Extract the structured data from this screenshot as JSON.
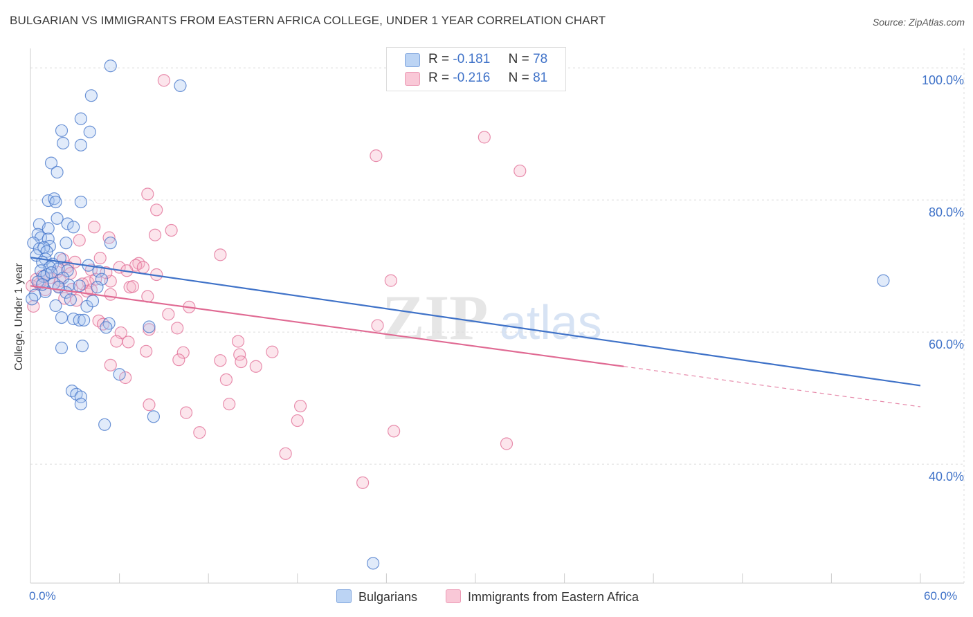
{
  "title": "BULGARIAN VS IMMIGRANTS FROM EASTERN AFRICA COLLEGE, UNDER 1 YEAR CORRELATION CHART",
  "source": "Source: ZipAtlas.com",
  "colors": {
    "blue": "#3f72c8",
    "blue_fill": "#a9c7f0",
    "pink": "#e06a93",
    "pink_fill": "#f5b5c9",
    "grid": "#dddddd"
  },
  "legend": {
    "blue": {
      "r_label": "R =",
      "r_value": "-0.181",
      "n_label": "N =",
      "n_value": "78"
    },
    "pink": {
      "r_label": "R =",
      "r_value": "-0.216",
      "n_label": "N =",
      "n_value": "81"
    }
  },
  "bottom_legend": {
    "series1": "Bulgarians",
    "series2": "Immigrants from Eastern Africa"
  },
  "watermark": {
    "zip": "ZIP",
    "atlas": "atlas"
  },
  "chart_data": {
    "type": "scatter",
    "ylabel": "College, Under 1 year",
    "x_tick_labels": [
      "0.0%",
      "60.0%"
    ],
    "y_tick_labels": [
      "100.0%",
      "80.0%",
      "60.0%",
      "40.0%"
    ],
    "y_ticks": [
      100,
      80,
      60,
      40
    ],
    "xlim": [
      0,
      60
    ],
    "ylim": [
      22,
      102
    ],
    "grid": true,
    "series": [
      {
        "name": "Bulgarians",
        "color": "#3f72c8",
        "trend": {
          "x": [
            0,
            60
          ],
          "y": [
            71.3,
            51.9
          ],
          "dashed_from": null
        },
        "points": [
          [
            5.4,
            100.3
          ],
          [
            10.1,
            97.3
          ],
          [
            4.1,
            95.8
          ],
          [
            3.4,
            92.3
          ],
          [
            2.1,
            90.5
          ],
          [
            4.0,
            90.3
          ],
          [
            2.2,
            88.6
          ],
          [
            3.4,
            88.3
          ],
          [
            1.4,
            85.6
          ],
          [
            1.8,
            84.2
          ],
          [
            1.2,
            79.9
          ],
          [
            1.6,
            80.2
          ],
          [
            1.7,
            79.7
          ],
          [
            3.4,
            79.7
          ],
          [
            1.8,
            77.2
          ],
          [
            0.6,
            76.3
          ],
          [
            2.5,
            76.4
          ],
          [
            1.2,
            75.7
          ],
          [
            2.9,
            75.9
          ],
          [
            0.5,
            74.8
          ],
          [
            0.7,
            74.3
          ],
          [
            1.2,
            74.1
          ],
          [
            0.2,
            73.5
          ],
          [
            2.4,
            73.5
          ],
          [
            5.4,
            73.5
          ],
          [
            1.3,
            73.0
          ],
          [
            0.6,
            72.6
          ],
          [
            0.9,
            72.8
          ],
          [
            1.1,
            72.2
          ],
          [
            0.4,
            71.6
          ],
          [
            1.0,
            71.1
          ],
          [
            2.0,
            71.2
          ],
          [
            0.8,
            70.6
          ],
          [
            1.5,
            70.3
          ],
          [
            3.9,
            70.1
          ],
          [
            1.3,
            69.8
          ],
          [
            1.9,
            69.6
          ],
          [
            0.7,
            69.3
          ],
          [
            2.5,
            69.3
          ],
          [
            4.6,
            69.2
          ],
          [
            1.1,
            68.7
          ],
          [
            0.9,
            68.4
          ],
          [
            2.2,
            68.2
          ],
          [
            4.8,
            68.0
          ],
          [
            0.5,
            67.6
          ],
          [
            1.6,
            67.4
          ],
          [
            2.6,
            67.1
          ],
          [
            3.3,
            67.0
          ],
          [
            4.5,
            66.8
          ],
          [
            1.0,
            66.1
          ],
          [
            2.4,
            66.0
          ],
          [
            0.3,
            65.6
          ],
          [
            2.7,
            64.9
          ],
          [
            1.7,
            64.0
          ],
          [
            3.8,
            63.9
          ],
          [
            2.1,
            62.2
          ],
          [
            2.9,
            62.0
          ],
          [
            3.3,
            61.8
          ],
          [
            3.6,
            61.8
          ],
          [
            5.3,
            61.3
          ],
          [
            5.1,
            60.7
          ],
          [
            8.0,
            60.8
          ],
          [
            2.1,
            57.6
          ],
          [
            3.5,
            57.9
          ],
          [
            6.0,
            53.6
          ],
          [
            2.8,
            51.1
          ],
          [
            3.1,
            50.6
          ],
          [
            3.4,
            50.2
          ],
          [
            3.4,
            49.1
          ],
          [
            8.3,
            47.2
          ],
          [
            5.0,
            46.0
          ],
          [
            57.5,
            67.8
          ],
          [
            23.1,
            25.0
          ],
          [
            0.1,
            65.0
          ],
          [
            1.4,
            69.0
          ],
          [
            0.8,
            67.2
          ],
          [
            1.9,
            66.8
          ],
          [
            4.2,
            64.7
          ]
        ]
      },
      {
        "name": "Immigrants from Eastern Africa",
        "color": "#e06a93",
        "trend": {
          "x": [
            0,
            60
          ],
          "y": [
            67.0,
            48.7
          ],
          "dashed_from": 40
        },
        "points": [
          [
            9.0,
            98.1
          ],
          [
            30.6,
            89.5
          ],
          [
            23.3,
            86.7
          ],
          [
            33.0,
            84.4
          ],
          [
            7.9,
            80.9
          ],
          [
            8.5,
            78.5
          ],
          [
            9.5,
            75.4
          ],
          [
            4.3,
            75.9
          ],
          [
            8.4,
            74.7
          ],
          [
            5.3,
            74.3
          ],
          [
            3.3,
            73.9
          ],
          [
            12.8,
            71.7
          ],
          [
            4.7,
            71.2
          ],
          [
            2.2,
            71.0
          ],
          [
            3.0,
            70.6
          ],
          [
            7.3,
            70.4
          ],
          [
            7.1,
            70.1
          ],
          [
            2.5,
            69.9
          ],
          [
            6.0,
            69.8
          ],
          [
            6.5,
            69.3
          ],
          [
            4.1,
            69.4
          ],
          [
            1.8,
            69.1
          ],
          [
            8.5,
            68.7
          ],
          [
            0.8,
            68.5
          ],
          [
            1.3,
            68.2
          ],
          [
            24.3,
            67.8
          ],
          [
            5.4,
            67.7
          ],
          [
            3.9,
            67.5
          ],
          [
            0.6,
            67.3
          ],
          [
            1.9,
            66.9
          ],
          [
            6.7,
            66.8
          ],
          [
            4.1,
            66.4
          ],
          [
            2.8,
            66.5
          ],
          [
            3.8,
            66.2
          ],
          [
            5.4,
            65.7
          ],
          [
            7.9,
            65.4
          ],
          [
            2.3,
            65.1
          ],
          [
            3.1,
            64.8
          ],
          [
            10.7,
            63.8
          ],
          [
            0.2,
            63.9
          ],
          [
            9.3,
            62.7
          ],
          [
            4.6,
            61.7
          ],
          [
            4.9,
            61.2
          ],
          [
            23.4,
            61.0
          ],
          [
            8.0,
            60.4
          ],
          [
            9.9,
            60.6
          ],
          [
            6.1,
            59.9
          ],
          [
            5.8,
            58.6
          ],
          [
            6.6,
            58.5
          ],
          [
            14.0,
            58.6
          ],
          [
            10.3,
            56.9
          ],
          [
            7.8,
            57.1
          ],
          [
            16.3,
            57.0
          ],
          [
            14.1,
            56.6
          ],
          [
            10.0,
            55.8
          ],
          [
            12.8,
            55.7
          ],
          [
            14.2,
            55.5
          ],
          [
            15.2,
            54.8
          ],
          [
            5.4,
            55.0
          ],
          [
            6.4,
            53.1
          ],
          [
            13.2,
            52.8
          ],
          [
            8.0,
            49.0
          ],
          [
            13.4,
            49.1
          ],
          [
            18.2,
            48.8
          ],
          [
            10.5,
            47.8
          ],
          [
            18.0,
            46.6
          ],
          [
            11.4,
            44.8
          ],
          [
            24.5,
            45.0
          ],
          [
            32.1,
            43.1
          ],
          [
            17.2,
            41.6
          ],
          [
            22.4,
            37.2
          ],
          [
            0.1,
            67.0
          ],
          [
            0.4,
            68.0
          ],
          [
            1.0,
            66.4
          ],
          [
            2.0,
            67.8
          ],
          [
            2.7,
            68.9
          ],
          [
            3.5,
            67.3
          ],
          [
            4.4,
            68.0
          ],
          [
            5.1,
            69.0
          ],
          [
            6.9,
            66.9
          ],
          [
            7.6,
            69.8
          ]
        ]
      }
    ]
  }
}
